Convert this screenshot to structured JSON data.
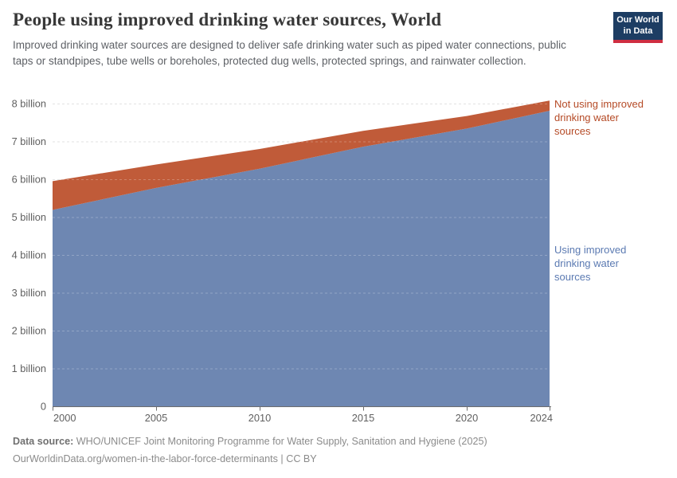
{
  "header": {
    "title": "People using improved drinking water sources, World",
    "subtitle": "Improved drinking water sources are designed to deliver safe drinking water such as piped water connections, public taps or standpipes, tube wells or boreholes, protected dug wells, protected springs, and rainwater collection.",
    "logo": {
      "line1": "Our World",
      "line2": "in Data",
      "bg_color": "#1d3d63",
      "stripe_color": "#cf2e41"
    }
  },
  "chart_data": {
    "type": "area",
    "stacked": true,
    "title": "People using improved drinking water sources, World",
    "xlabel": "",
    "ylabel": "",
    "unit": "billion people",
    "grid": "dashed-horizontal",
    "x": [
      2000,
      2005,
      2010,
      2015,
      2020,
      2024
    ],
    "series": [
      {
        "name": "Using improved drinking water sources",
        "values": [
          5.19,
          5.77,
          6.28,
          6.86,
          7.34,
          7.81
        ],
        "color": "#6e87b2",
        "label_color": "#5b7ab2",
        "label_lines": [
          "Using improved",
          "drinking water",
          "sources"
        ]
      },
      {
        "name": "Not using improved drinking water sources",
        "values": [
          0.76,
          0.62,
          0.52,
          0.42,
          0.33,
          0.27
        ],
        "color": "#c05b39",
        "label_color": "#b54a26",
        "label_lines": [
          "Not using improved",
          "drinking water",
          "sources"
        ]
      }
    ],
    "stacked_totals": [
      5.95,
      6.39,
      6.8,
      7.28,
      7.67,
      8.08
    ],
    "ylim": [
      0,
      8.4
    ],
    "xlim": [
      2000,
      2024
    ],
    "yticks": [
      {
        "v": 8,
        "label": "8 billion"
      },
      {
        "v": 7,
        "label": "7 billion"
      },
      {
        "v": 6,
        "label": "6 billion"
      },
      {
        "v": 5,
        "label": "5 billion"
      },
      {
        "v": 4,
        "label": "4 billion"
      },
      {
        "v": 3,
        "label": "3 billion"
      },
      {
        "v": 2,
        "label": "2 billion"
      },
      {
        "v": 1,
        "label": "1 billion"
      },
      {
        "v": 0,
        "label": "0"
      }
    ],
    "xticks": [
      {
        "v": 2000,
        "label": "2000"
      },
      {
        "v": 2005,
        "label": "2005"
      },
      {
        "v": 2010,
        "label": "2010"
      },
      {
        "v": 2015,
        "label": "2015"
      },
      {
        "v": 2020,
        "label": "2020"
      },
      {
        "v": 2024,
        "label": "2024"
      }
    ],
    "legend_position": "right-edge-labels"
  },
  "footer": {
    "data_source_label": "Data source:",
    "data_source_text": " WHO/UNICEF Joint Monitoring Programme for Water Supply, Sanitation and Hygiene (2025)",
    "link_text": "OurWorldinData.org/women-in-the-labor-force-determinants",
    "separator": " | ",
    "license": "CC BY"
  }
}
